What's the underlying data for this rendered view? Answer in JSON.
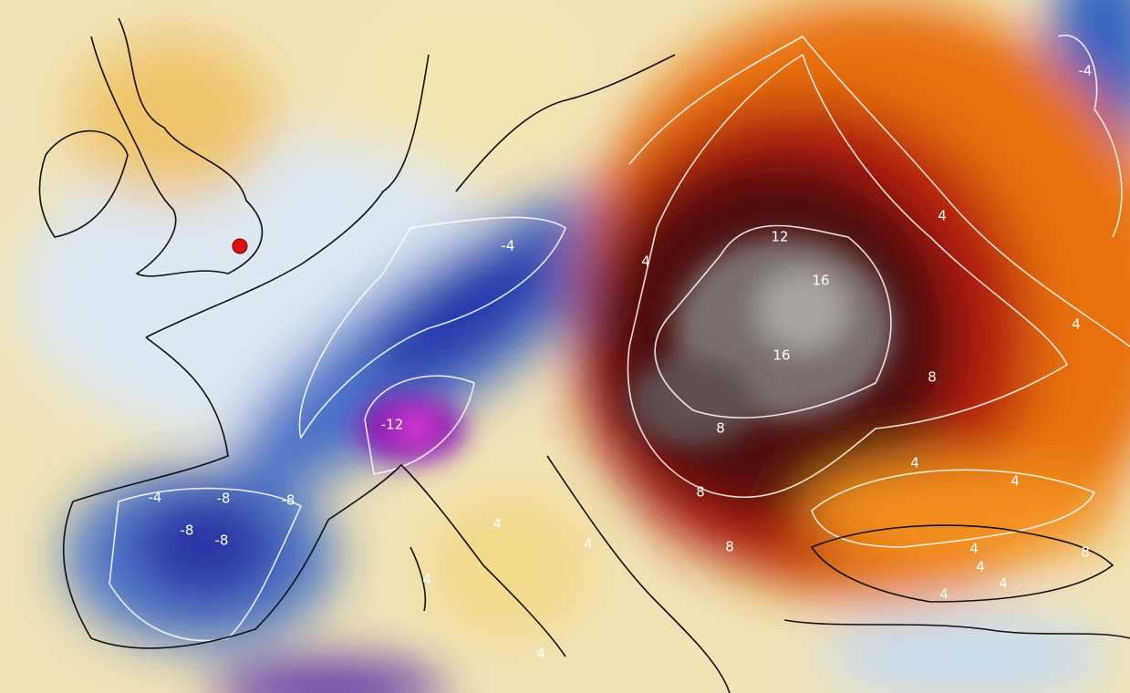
{
  "contour_labels": [
    -4,
    12,
    16,
    16,
    -4,
    4,
    4,
    4,
    8,
    8,
    -12,
    -4,
    -8,
    -8,
    -8,
    -8,
    8,
    4,
    4,
    8,
    4,
    4,
    4,
    4,
    8,
    4,
    4,
    4,
    4
  ]
}
